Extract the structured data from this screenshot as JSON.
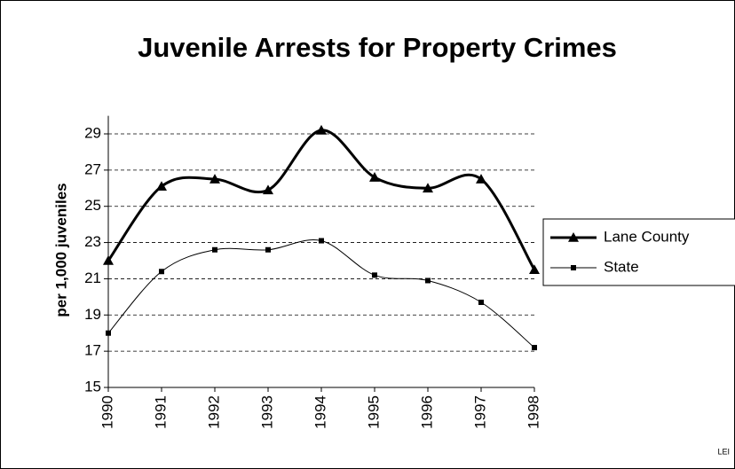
{
  "chart_data": {
    "type": "line",
    "title": "Juvenile Arrests for Property Crimes",
    "y_label": "per 1,000 juveniles",
    "annotation": "LEI",
    "categories": [
      "1990",
      "1991",
      "1992",
      "1993",
      "1994",
      "1995",
      "1996",
      "1997",
      "1998"
    ],
    "series": [
      {
        "name": "Lane County",
        "color": "#000000",
        "marker": "triangle",
        "values": [
          22.0,
          26.1,
          26.5,
          25.9,
          29.2,
          26.6,
          26.0,
          26.5,
          21.5
        ]
      },
      {
        "name": "State",
        "color": "#000000",
        "marker": "square",
        "values": [
          18.0,
          21.4,
          22.6,
          22.6,
          23.1,
          21.2,
          20.9,
          19.7,
          17.2
        ]
      }
    ],
    "ylim": [
      15,
      30
    ],
    "yticks": [
      15,
      17,
      19,
      21,
      23,
      25,
      27,
      29
    ],
    "grid": true,
    "smooth": true,
    "legend": "right"
  }
}
